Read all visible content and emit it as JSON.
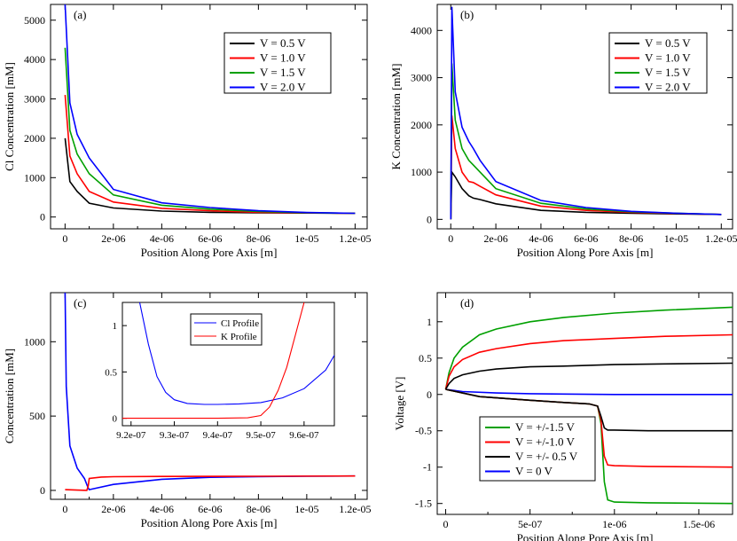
{
  "colors": {
    "black": "#000000",
    "red": "#ff0000",
    "green": "#00a000",
    "blue": "#0000ff"
  },
  "chart_data": [
    {
      "panel": "(a)",
      "type": "line",
      "xlabel": "Position Along Pore Axis [m]",
      "ylabel": "Cl Concentration [mM]",
      "xlim": [
        -6e-07,
        1.25e-05
      ],
      "ylim": [
        -300,
        5400
      ],
      "xticks": [
        0,
        2e-06,
        4e-06,
        6e-06,
        8e-06,
        1e-05,
        1.2e-05
      ],
      "xtick_labels": [
        "0",
        "2e-06",
        "4e-06",
        "6e-06",
        "8e-06",
        "1e-05",
        "1.2e-05"
      ],
      "yticks": [
        0,
        1000,
        2000,
        3000,
        4000,
        5000
      ],
      "ytick_labels": [
        "0",
        "1000",
        "2000",
        "3000",
        "4000",
        "5000"
      ],
      "legend": [
        "V = 0.5 V",
        "V = 1.0 V",
        "V = 1.5 V",
        "V = 2.0 V"
      ],
      "series": [
        {
          "name": "V = 0.5 V",
          "color": "black",
          "x": [
            0,
            2e-07,
            5e-07,
            1e-06,
            2e-06,
            4e-06,
            6e-06,
            8e-06,
            1e-05,
            1.2e-05
          ],
          "y": [
            2000,
            900,
            650,
            350,
            230,
            150,
            120,
            105,
            100,
            95
          ]
        },
        {
          "name": "V = 1.0 V",
          "color": "red",
          "x": [
            0,
            2e-07,
            5e-07,
            1e-06,
            2e-06,
            4e-06,
            6e-06,
            8e-06,
            1e-05,
            1.2e-05
          ],
          "y": [
            3100,
            1550,
            1100,
            650,
            380,
            220,
            160,
            120,
            105,
            95
          ]
        },
        {
          "name": "V = 1.5 V",
          "color": "green",
          "x": [
            0,
            2e-07,
            5e-07,
            1e-06,
            2e-06,
            4e-06,
            6e-06,
            8e-06,
            1e-05,
            1.2e-05
          ],
          "y": [
            4300,
            2200,
            1600,
            1100,
            560,
            300,
            200,
            140,
            110,
            95
          ]
        },
        {
          "name": "V = 2.0 V",
          "color": "blue",
          "x": [
            0,
            2e-07,
            5e-07,
            1e-06,
            2e-06,
            4e-06,
            6e-06,
            8e-06,
            1e-05,
            1.2e-05
          ],
          "y": [
            5400,
            2900,
            2100,
            1500,
            700,
            360,
            240,
            160,
            115,
            95
          ]
        }
      ]
    },
    {
      "panel": "(b)",
      "type": "line",
      "xlabel": "Position Along Pore Axis [m]",
      "ylabel": "K Concentration [mM]",
      "xlim": [
        -6e-07,
        1.25e-05
      ],
      "ylim": [
        -200,
        4550
      ],
      "xticks": [
        0,
        2e-06,
        4e-06,
        6e-06,
        8e-06,
        1e-05,
        1.2e-05
      ],
      "xtick_labels": [
        "0",
        "2e-06",
        "4e-06",
        "6e-06",
        "8e-06",
        "1e-05",
        "1.2e-05"
      ],
      "yticks": [
        0,
        1000,
        2000,
        3000,
        4000
      ],
      "ytick_labels": [
        "0",
        "1000",
        "2000",
        "3000",
        "4000"
      ],
      "legend": [
        "V = 0.5 V",
        "V = 1.0 V",
        "V = 1.5 V",
        "V = 2.0 V"
      ],
      "series": [
        {
          "name": "V = 0.5 V",
          "color": "black",
          "x": [
            0,
            5e-08,
            2e-07,
            5e-07,
            8e-07,
            1e-06,
            1.3e-06,
            2e-06,
            4e-06,
            6e-06,
            8e-06,
            1e-05,
            1.2e-05
          ],
          "y": [
            0,
            1000,
            900,
            650,
            500,
            450,
            420,
            330,
            190,
            150,
            130,
            115,
            105
          ]
        },
        {
          "name": "V = 1.0 V",
          "color": "red",
          "x": [
            0,
            5e-08,
            2e-07,
            5e-07,
            8e-07,
            1e-06,
            1.3e-06,
            2e-06,
            4e-06,
            6e-06,
            8e-06,
            1e-05,
            1.2e-05
          ],
          "y": [
            0,
            2200,
            1500,
            1000,
            800,
            780,
            700,
            520,
            280,
            190,
            150,
            125,
            105
          ]
        },
        {
          "name": "V = 1.5 V",
          "color": "green",
          "x": [
            0,
            5e-08,
            2e-07,
            5e-07,
            8e-07,
            1e-06,
            1.3e-06,
            2e-06,
            4e-06,
            6e-06,
            8e-06,
            1e-05,
            1.2e-05
          ],
          "y": [
            0,
            3300,
            2100,
            1500,
            1250,
            1150,
            1000,
            650,
            340,
            220,
            160,
            130,
            105
          ]
        },
        {
          "name": "V = 2.0 V",
          "color": "blue",
          "x": [
            0,
            5e-08,
            2e-07,
            5e-07,
            8e-07,
            1e-06,
            1.3e-06,
            2e-06,
            4e-06,
            6e-06,
            8e-06,
            1e-05,
            1.2e-05
          ],
          "y": [
            0,
            4500,
            2700,
            1950,
            1650,
            1500,
            1250,
            800,
            400,
            250,
            170,
            130,
            105
          ]
        }
      ]
    },
    {
      "panel": "(c)",
      "type": "line",
      "xlabel": "Position Along Pore Axis [m]",
      "ylabel": "Concentration [mM]",
      "xlim": [
        -6e-07,
        1.25e-05
      ],
      "ylim": [
        -60,
        1330
      ],
      "xticks": [
        0,
        2e-06,
        4e-06,
        6e-06,
        8e-06,
        1e-05,
        1.2e-05
      ],
      "xtick_labels": [
        "0",
        "2e-06",
        "4e-06",
        "6e-06",
        "8e-06",
        "1e-05",
        "1.2e-05"
      ],
      "yticks": [
        0,
        500,
        1000
      ],
      "ytick_labels": [
        "0",
        "500",
        "1000"
      ],
      "series": [
        {
          "name": "Cl Profile",
          "color": "blue",
          "x": [
            0,
            5e-08,
            2e-07,
            5e-07,
            8e-07,
            9.5e-07,
            1e-06,
            2e-06,
            4e-06,
            6e-06,
            8e-06,
            1e-05,
            1.2e-05
          ],
          "y": [
            1330,
            700,
            300,
            150,
            80,
            20,
            5,
            40,
            75,
            88,
            93,
            95,
            97
          ]
        },
        {
          "name": "K Profile",
          "color": "red",
          "x": [
            0,
            5e-07,
            9e-07,
            9.6e-07,
            1e-06,
            1.5e-06,
            2e-06,
            4e-06,
            8e-06,
            1.2e-05
          ],
          "y": [
            5,
            2,
            0,
            30,
            80,
            90,
            92,
            94,
            95,
            97
          ]
        }
      ],
      "inset": {
        "xlim": [
          9.18e-07,
          9.67e-07
        ],
        "ylim": [
          -0.08,
          1.25
        ],
        "xticks": [
          9.2e-07,
          9.3e-07,
          9.4e-07,
          9.5e-07,
          9.6e-07
        ],
        "xtick_labels": [
          "9.2e-07",
          "9.3e-07",
          "9.4e-07",
          "9.5e-07",
          "9.6e-07"
        ],
        "yticks": [
          0,
          0.5,
          1
        ],
        "ytick_labels": [
          "0",
          "0.5",
          "1"
        ],
        "legend": [
          "Cl Profile",
          "K Profile"
        ],
        "series": [
          {
            "name": "Cl Profile",
            "color": "blue",
            "x": [
              9.22e-07,
              9.24e-07,
              9.26e-07,
              9.28e-07,
              9.3e-07,
              9.33e-07,
              9.37e-07,
              9.4e-07,
              9.45e-07,
              9.5e-07,
              9.55e-07,
              9.6e-07,
              9.65e-07,
              9.67e-07
            ],
            "y": [
              1.25,
              0.8,
              0.45,
              0.28,
              0.2,
              0.16,
              0.15,
              0.15,
              0.155,
              0.17,
              0.22,
              0.32,
              0.52,
              0.68
            ]
          },
          {
            "name": "K Profile",
            "color": "red",
            "x": [
              9.18e-07,
              9.3e-07,
              9.4e-07,
              9.47e-07,
              9.5e-07,
              9.52e-07,
              9.54e-07,
              9.56e-07,
              9.58e-07,
              9.6e-07
            ],
            "y": [
              0,
              0,
              0,
              0.005,
              0.03,
              0.12,
              0.3,
              0.55,
              0.9,
              1.25
            ]
          }
        ]
      }
    },
    {
      "panel": "(d)",
      "type": "line",
      "xlabel": "Position Along Pore Axis [m]",
      "ylabel": "Voltage [V]",
      "xlim": [
        -5e-08,
        1.7e-06
      ],
      "ylim": [
        -1.65,
        1.4
      ],
      "xticks": [
        0,
        5e-07,
        1e-06,
        1.5e-06
      ],
      "xtick_labels": [
        "0",
        "5e-07",
        "1e-06",
        "1.5e-06"
      ],
      "yticks": [
        -1.5,
        -1,
        -0.5,
        0,
        0.5,
        1
      ],
      "ytick_labels": [
        "-1.5",
        "-1",
        "-0.5",
        "0",
        "0.5",
        "1"
      ],
      "legend": [
        "V = +/-1.5 V",
        "V = +/-1.0 V",
        "V = +/- 0.5 V",
        "V = 0 V"
      ],
      "series": [
        {
          "name": "V = +/-1.5 V (upper)",
          "color": "green",
          "x": [
            0,
            2e-08,
            5e-08,
            1e-07,
            2e-07,
            3e-07,
            5e-07,
            7e-07,
            1e-06,
            1.3e-06,
            1.7e-06
          ],
          "y": [
            0.07,
            0.3,
            0.5,
            0.65,
            0.82,
            0.9,
            1.0,
            1.06,
            1.12,
            1.16,
            1.2
          ]
        },
        {
          "name": "V = +/-1.0 V (upper)",
          "color": "red",
          "x": [
            0,
            2e-08,
            5e-08,
            1e-07,
            2e-07,
            3e-07,
            5e-07,
            7e-07,
            1e-06,
            1.3e-06,
            1.7e-06
          ],
          "y": [
            0.07,
            0.25,
            0.38,
            0.48,
            0.58,
            0.63,
            0.7,
            0.74,
            0.77,
            0.8,
            0.82
          ]
        },
        {
          "name": "V = +/- 0.5 V (upper)",
          "color": "black",
          "x": [
            0,
            2e-08,
            5e-08,
            1e-07,
            2e-07,
            3e-07,
            5e-07,
            7e-07,
            1e-06,
            1.3e-06,
            1.7e-06
          ],
          "y": [
            0.07,
            0.15,
            0.22,
            0.27,
            0.32,
            0.35,
            0.38,
            0.39,
            0.41,
            0.42,
            0.43
          ]
        },
        {
          "name": "V = 0 V",
          "color": "blue",
          "x": [
            0,
            1e-07,
            3e-07,
            5e-07,
            7e-07,
            1e-06,
            1.3e-06,
            1.7e-06
          ],
          "y": [
            0.07,
            0.04,
            0.02,
            0.01,
            0.005,
            0,
            0,
            0
          ]
        },
        {
          "name": "V = +/-1.5 V (lower)",
          "color": "green",
          "x": [
            0,
            2e-07,
            5e-07,
            7e-07,
            8.5e-07,
            9e-07,
            9.2e-07,
            9.4e-07,
            9.6e-07,
            1e-06,
            1.2e-06,
            1.7e-06
          ],
          "y": [
            0.07,
            -0.03,
            -0.08,
            -0.11,
            -0.13,
            -0.16,
            -0.4,
            -1.2,
            -1.45,
            -1.48,
            -1.49,
            -1.5
          ]
        },
        {
          "name": "V = +/-1.0 V (lower)",
          "color": "red",
          "x": [
            0,
            2e-07,
            5e-07,
            7e-07,
            8.5e-07,
            9e-07,
            9.2e-07,
            9.4e-07,
            9.6e-07,
            1e-06,
            1.2e-06,
            1.7e-06
          ],
          "y": [
            0.07,
            -0.03,
            -0.08,
            -0.11,
            -0.13,
            -0.16,
            -0.35,
            -0.85,
            -0.97,
            -0.98,
            -0.99,
            -1.0
          ]
        },
        {
          "name": "V = +/- 0.5 V (lower)",
          "color": "black",
          "x": [
            0,
            2e-07,
            5e-07,
            7e-07,
            8.5e-07,
            9e-07,
            9.2e-07,
            9.4e-07,
            9.6e-07,
            1e-06,
            1.2e-06,
            1.7e-06
          ],
          "y": [
            0.07,
            -0.03,
            -0.08,
            -0.11,
            -0.13,
            -0.16,
            -0.3,
            -0.46,
            -0.49,
            -0.49,
            -0.5,
            -0.5
          ]
        }
      ]
    }
  ]
}
